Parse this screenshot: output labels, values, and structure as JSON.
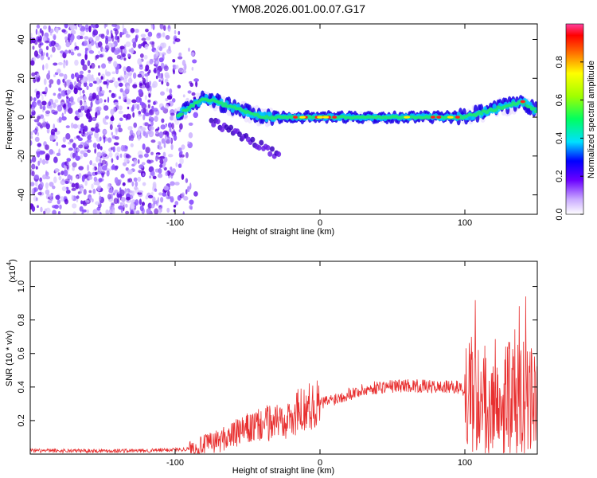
{
  "title": "YM08.2026.001.00.07.G17",
  "colors": {
    "signal_line": "#e83030",
    "frame": "#000000"
  },
  "chart_data": [
    {
      "type": "heatmap",
      "title": "YM08.2026.001.00.07.G17",
      "xlabel": "Height of straight line (km)",
      "ylabel": "Frequency (Hz)",
      "xlim": [
        -200,
        150
      ],
      "ylim": [
        -50,
        48
      ],
      "xticks": [
        -100,
        0,
        100
      ],
      "xtick_labels": [
        "-100",
        "0",
        "100"
      ],
      "yticks": [
        -40,
        -20,
        0,
        20,
        40
      ],
      "ytick_labels": [
        "-40",
        "-20",
        "0",
        "20",
        "40"
      ],
      "colorbar": {
        "label": "Normalized spectral amplitude",
        "range": [
          0,
          1
        ],
        "ticks": [
          0.0,
          0.2,
          0.4,
          0.6,
          0.8
        ],
        "tick_labels": [
          "0.0",
          "0.2",
          "0.4",
          "0.6",
          "0.8"
        ]
      },
      "ridge": [
        {
          "x": -100,
          "f": 0
        },
        {
          "x": -80,
          "f": 10
        },
        {
          "x": -60,
          "f": 5
        },
        {
          "x": -40,
          "f": 0
        },
        {
          "x": -20,
          "f": 0
        },
        {
          "x": 0,
          "f": 0
        },
        {
          "x": 50,
          "f": 0
        },
        {
          "x": 100,
          "f": 0
        },
        {
          "x": 140,
          "f": 8
        },
        {
          "x": 150,
          "f": 3
        }
      ]
    },
    {
      "type": "line",
      "xlabel": "Height of straight line (km)",
      "ylabel": "SNR (10 * v/v)",
      "exponent_label": "(x10",
      "exponent_power": "4",
      "xlim": [
        -200,
        150
      ],
      "ylim": [
        0,
        1.15
      ],
      "xticks": [
        -100,
        0,
        100
      ],
      "xtick_labels": [
        "-100",
        "0",
        "100"
      ],
      "yticks": [
        0.2,
        0.4,
        0.6,
        0.8,
        1.0
      ],
      "ytick_labels": [
        "0.2",
        "0.4",
        "0.6",
        "0.8",
        "1.0"
      ],
      "series": [
        {
          "name": "SNR",
          "envelope": [
            {
              "x": -200,
              "y": 0.02
            },
            {
              "x": -120,
              "y": 0.02
            },
            {
              "x": -90,
              "y": 0.03
            },
            {
              "x": -70,
              "y": 0.08
            },
            {
              "x": -50,
              "y": 0.15
            },
            {
              "x": -30,
              "y": 0.2
            },
            {
              "x": -20,
              "y": 0.22
            },
            {
              "x": -10,
              "y": 0.28
            },
            {
              "x": 0,
              "y": 0.3
            },
            {
              "x": 20,
              "y": 0.36
            },
            {
              "x": 40,
              "y": 0.4
            },
            {
              "x": 60,
              "y": 0.41
            },
            {
              "x": 80,
              "y": 0.4
            },
            {
              "x": 95,
              "y": 0.4
            },
            {
              "x": 100,
              "y": 0.38
            },
            {
              "x": 110,
              "y": 0.33
            },
            {
              "x": 130,
              "y": 0.35
            },
            {
              "x": 150,
              "y": 0.3
            }
          ]
        }
      ]
    }
  ]
}
